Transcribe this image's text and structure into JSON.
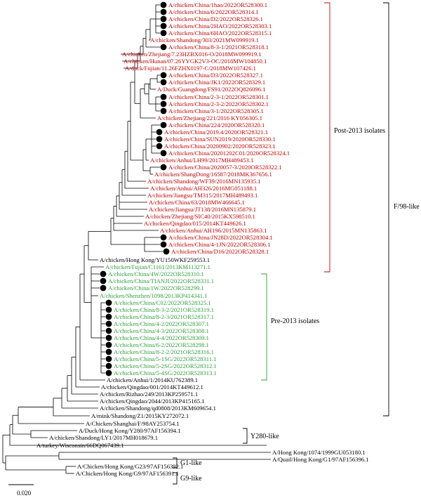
{
  "colors": {
    "post": "#c00000",
    "pre": "#2e9e3a",
    "other": "#000000"
  },
  "groups": {
    "post": "Post-2013 isolates",
    "pre": "Pre-2013 isolates",
    "f98": "F/98-like",
    "y280": "Y280-like",
    "g1": "G1-like",
    "g9": "G9-like"
  },
  "scale_label": "0.020",
  "taxa": [
    {
      "label": "A/chicken/China/1hao/2022OR528300.1",
      "clade": "post",
      "dot": true
    },
    {
      "label": "A/chicken/China/6/2022OR528314.1",
      "clade": "post",
      "dot": true
    },
    {
      "label": "A/chicken/China/D2/2022OR528326.1",
      "clade": "post",
      "dot": true
    },
    {
      "label": "A/chicken/China/2HAO/2022OR528303.1",
      "clade": "post",
      "dot": true
    },
    {
      "label": "A/chicken/China/6HAO/2022OR528315.1",
      "clade": "post",
      "dot": true
    },
    {
      "label": "A/chicken/Shandong/303/2021MW099919.1",
      "clade": "post",
      "dot": false
    },
    {
      "label": "A/chicken/China/8-3-1/2021OR528318.1",
      "clade": "post",
      "dot": true
    },
    {
      "label": "A/chicken/Zhejiang/7.23HZBX016-O/2018MW099919.1",
      "clade": "post",
      "dot": false
    },
    {
      "label": "A/chicken/Hunan/07.26YYGK2V3-OC/2018MW104850.1",
      "clade": "post",
      "dot": false
    },
    {
      "label": "A/duck/Fujian/11.26FZHX0197-C/2018MW107426.1",
      "clade": "post",
      "dot": false
    },
    {
      "label": "A/chicken/China/D3/2022OR528327.1",
      "clade": "post",
      "dot": true
    },
    {
      "label": "A/chicken/China/JK1/2022OR528329.1",
      "clade": "post",
      "dot": true
    },
    {
      "label": "A/Duck/Guangdong/FS91/2022OQ826096.1",
      "clade": "post",
      "dot": false
    },
    {
      "label": "A/chicken/China/2-3-1/2022OR528301.1",
      "clade": "post",
      "dot": true
    },
    {
      "label": "A/chicken/China/2-3-2/2022OR528302.1",
      "clade": "post",
      "dot": true
    },
    {
      "label": "A/chicken/China/3-1/2022OR528305.1",
      "clade": "post",
      "dot": true
    },
    {
      "label": "A/chicken/Zhejiang/221/2016 KY056305.1",
      "clade": "post",
      "dot": false
    },
    {
      "label": "A/chicken/China/224/2020OR528320.1",
      "clade": "post",
      "dot": true
    },
    {
      "label": "A/chicken/China/2019.4/2020OR528321.1",
      "clade": "post",
      "dot": true
    },
    {
      "label": "A/chicken/China/SUN2019/2020OR528330.1",
      "clade": "post",
      "dot": true
    },
    {
      "label": "A/chicken/China/20200902/2020OR528323.1",
      "clade": "post",
      "dot": true
    },
    {
      "label": "A/chicken/China/20201202C01/2020OR528324.1",
      "clade": "post",
      "dot": true
    },
    {
      "label": "A/chicken/Anhui/LH99/2017MH489453.1",
      "clade": "post",
      "dot": false
    },
    {
      "label": "A/chicken/China/2020057-3/2020OR528322.1",
      "clade": "post",
      "dot": true
    },
    {
      "label": "A/chicken/ShangDong/16587/2018MK367656.1",
      "clade": "post",
      "dot": false
    },
    {
      "label": "A/chicken/Shandong/WF39/2016MN135935.1",
      "clade": "post",
      "dot": false
    },
    {
      "label": "A/chicken/Anhui/AH326/2016MG051188.1",
      "clade": "post",
      "dot": false
    },
    {
      "label": "A/chicken/Jiangsu/TM315/2017MH489493.1",
      "clade": "post",
      "dot": false
    },
    {
      "label": "A/chicken/China/63/2018MW466645.1",
      "clade": "post",
      "dot": false
    },
    {
      "label": "A/chicken/Jiangsu/JT138/2016MN135879.1",
      "clade": "post",
      "dot": false
    },
    {
      "label": "A/chicken/Zhejiang/SIC40/2015KX598510.1",
      "clade": "post",
      "dot": false
    },
    {
      "label": "A/chicken/Qingdao/015/2014KT449626.1",
      "clade": "post",
      "dot": false
    },
    {
      "label": "A/chicken/Anhui/AH196/2015MN135863.1",
      "clade": "post",
      "dot": false
    },
    {
      "label": "A/chicken/China/JN28D/2022OR528304.1",
      "clade": "post",
      "dot": true
    },
    {
      "label": "A/chicken/China/4-1JN/2022OR528306.1",
      "clade": "post",
      "dot": true
    },
    {
      "label": "A/chicken/China/D16/2022OR528328.1",
      "clade": "post",
      "dot": true
    },
    {
      "label": "A/chicken/Hong Kong/YU150WKF259553.1",
      "clade": "other",
      "dot": false
    },
    {
      "label": "A/chicken/Fujian/C1161/2013KM113271.1",
      "clade": "pre",
      "dot": false
    },
    {
      "label": "A/chicken/China/4W/2022OR528310.1",
      "clade": "pre",
      "dot": true
    },
    {
      "label": "A/chicken/China/TIANJI/2022OR528331.1",
      "clade": "pre",
      "dot": true
    },
    {
      "label": "A/chicken/China/1W/2022OR528299.1",
      "clade": "pre",
      "dot": true
    },
    {
      "label": "A/chicken/Shenzhen/1098/2013KP414341.1",
      "clade": "pre",
      "dot": false
    },
    {
      "label": "A/chicken/China/C02/2022OR528325.1",
      "clade": "pre",
      "dot": true
    },
    {
      "label": "A/chicken/China/8-3-2/2021OR528319.1",
      "clade": "pre",
      "dot": true
    },
    {
      "label": "A/chicken/China/8-2-3/2021OR528317.1",
      "clade": "pre",
      "dot": true
    },
    {
      "label": "A/chicken/China/4-2/2022OR528307.1",
      "clade": "pre",
      "dot": true
    },
    {
      "label": "A/chicken/China/4-3/2022OR528308.1",
      "clade": "pre",
      "dot": true
    },
    {
      "label": "A/chicken/China/4-4/2022OR528309.1",
      "clade": "pre",
      "dot": true
    },
    {
      "label": "A/chicken/China/6-2/2022OR528298.1",
      "clade": "pre",
      "dot": true
    },
    {
      "label": "A/chicken/China/8-2-2/2021OR528316.1",
      "clade": "pre",
      "dot": true
    },
    {
      "label": "A/chicken/China/5-1SG/2022OR528311.1",
      "clade": "pre",
      "dot": true
    },
    {
      "label": "A/chicken/China/5-2SG/2022OR528312.1",
      "clade": "pre",
      "dot": true
    },
    {
      "label": "A/chicken/China/5-4SG/2022OR528313.1",
      "clade": "pre",
      "dot": true
    },
    {
      "label": "A/chicken/Anhui/1/2014KU762389.1",
      "clade": "other",
      "dot": false
    },
    {
      "label": "A/chicken/Qingdao/001/2014KT449612.1",
      "clade": "other",
      "dot": false
    },
    {
      "label": "A/chicken/Rizhao/249/2013KP259571.1",
      "clade": "other",
      "dot": false
    },
    {
      "label": "A/chicken/Qingdao/2044/2013KP415165.1",
      "clade": "other",
      "dot": false
    },
    {
      "label": "A/chicken/Shandong/qd0808/2013KM609654.1",
      "clade": "other",
      "dot": false
    },
    {
      "label": "A/mink/Shandong/Z1/2015KY272072.1",
      "clade": "other",
      "dot": false
    },
    {
      "label": "A/Chicken/Shanghai/F/98AY253754.1",
      "clade": "other",
      "dot": false
    },
    {
      "label": "A/Duck/Hong Kong/Y280/97AF156394.1",
      "clade": "other",
      "dot": false
    },
    {
      "label": "A/chicken/Shandong/LY1/2017MH018679.1",
      "clade": "other",
      "dot": false
    },
    {
      "label": "A/turkey/Wisconsin/66DQ067439.1",
      "clade": "other",
      "dot": false
    },
    {
      "label": "A/Hong Kong/1074/1999GU053180.1",
      "clade": "other",
      "dot": false
    },
    {
      "label": "A/Quail/Hong Kong/G1/97AF156396.1",
      "clade": "other",
      "dot": false
    },
    {
      "label": "A/Chicken/Hong Kong/G23/97AF156392.1",
      "clade": "other",
      "dot": false
    },
    {
      "label": "A/Chicken/Hong Kong/G9/97AF156391.1",
      "clade": "other",
      "dot": false
    }
  ]
}
